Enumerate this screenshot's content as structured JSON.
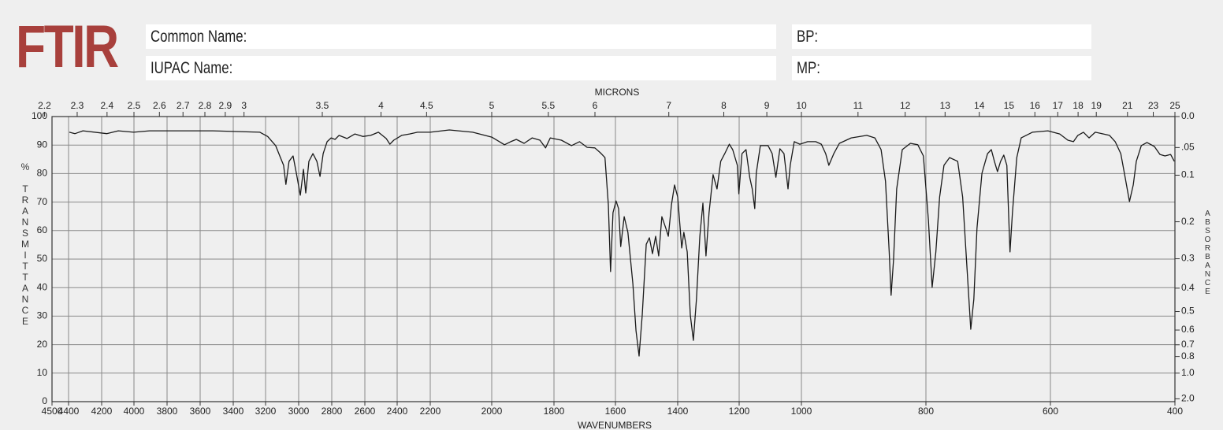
{
  "header": {
    "title": "FTIR",
    "common_name_label": "Common Name:",
    "iupac_name_label": "IUPAC Name:",
    "bp_label": "BP:",
    "mp_label": "MP:"
  },
  "chart_data": {
    "type": "line",
    "x_label": "WAVENUMBERS",
    "x2_label": "MICRONS",
    "y_label": "% TRANSMITTANCE",
    "y2_label": "ABSORBANCE",
    "color": "#1a1a1a",
    "grid": true,
    "xlim": [
      4500,
      400
    ],
    "xticks": [
      4500,
      4400,
      4200,
      4000,
      3800,
      3600,
      3400,
      3200,
      3000,
      2800,
      2600,
      2400,
      2200,
      2000,
      1800,
      1600,
      1400,
      1200,
      1000,
      800,
      600,
      400
    ],
    "x2ticks": [
      2.2,
      2.3,
      2.4,
      2.5,
      2.6,
      2.7,
      2.8,
      2.9,
      3,
      3.5,
      4,
      4.5,
      5,
      5.5,
      6,
      7,
      8,
      9,
      10,
      11,
      12,
      13,
      14,
      15,
      16,
      17,
      18,
      19,
      21,
      23,
      25
    ],
    "ylim": [
      0,
      100
    ],
    "yticks": [
      0,
      10,
      20,
      30,
      40,
      50,
      60,
      70,
      80,
      90,
      100
    ],
    "y2ticks": [
      {
        "value": 0,
        "label": "0.0"
      },
      {
        "value": 0.05,
        "label": ".05"
      },
      0.1,
      0.2,
      0.3,
      0.4,
      0.5,
      0.6,
      0.7,
      0.8,
      {
        "value": 1,
        "label": "1.0"
      },
      {
        "value": 2,
        "label": "2.0"
      }
    ],
    "x": [
      4395,
      4361,
      4313,
      4169,
      4097,
      4002,
      3906,
      3714,
      3522,
      3235,
      3187,
      3139,
      3110,
      3091,
      3077,
      3058,
      3034,
      3014,
      2990,
      2971,
      2957,
      2938,
      2914,
      2890,
      2871,
      2852,
      2828,
      2804,
      2780,
      2756,
      2708,
      2660,
      2612,
      2564,
      2516,
      2468,
      2445,
      2421,
      2373,
      2325,
      2277,
      2200,
      2138,
      2062,
      2000,
      1959,
      1939,
      1921,
      1896,
      1870,
      1845,
      1827,
      1812,
      1776,
      1743,
      1717,
      1692,
      1667,
      1649,
      1634,
      1623,
      1616,
      1608,
      1598,
      1590,
      1583,
      1572,
      1560,
      1544,
      1534,
      1524,
      1514,
      1501,
      1491,
      1481,
      1471,
      1461,
      1451,
      1438,
      1430,
      1420,
      1410,
      1400,
      1387,
      1380,
      1369,
      1359,
      1349,
      1339,
      1328,
      1318,
      1308,
      1298,
      1285,
      1272,
      1260,
      1247,
      1232,
      1221,
      1206,
      1201,
      1191,
      1178,
      1166,
      1158,
      1150,
      1145,
      1132,
      1107,
      1094,
      1082,
      1069,
      1056,
      1043,
      1036,
      1023,
      1005,
      990,
      977,
      968,
      961,
      956,
      948,
      939,
      920,
      895,
      882,
      872,
      865,
      859,
      856,
      852,
      847,
      838,
      825,
      813,
      804,
      796,
      790,
      784,
      778,
      771,
      762,
      749,
      741,
      734,
      728,
      723,
      718,
      710,
      701,
      695,
      690,
      685,
      680,
      675,
      670,
      665,
      661,
      654,
      647,
      629,
      604,
      585,
      572,
      563,
      556,
      547,
      538,
      528,
      515,
      505,
      496,
      487,
      480,
      473,
      467,
      462,
      454,
      445,
      433,
      424,
      416,
      407,
      401
    ],
    "values": [
      94.5,
      94,
      95,
      94,
      95,
      94.5,
      95,
      95,
      95,
      94.5,
      93,
      89.8,
      85.6,
      82.9,
      76.2,
      84.3,
      86.2,
      80.1,
      72.4,
      81.5,
      73.2,
      84.3,
      87,
      84.3,
      79,
      87,
      91.2,
      92.5,
      92,
      93.4,
      92.3,
      93.9,
      93,
      93.4,
      94.5,
      92.3,
      90.3,
      91.7,
      93.4,
      93.9,
      94.5,
      94.5,
      95.3,
      94.5,
      92.8,
      90.1,
      91.2,
      92,
      90.6,
      92.5,
      91.7,
      89,
      92.5,
      91.7,
      89.8,
      91.2,
      89.2,
      89,
      87.3,
      85.6,
      69.1,
      45.6,
      66.3,
      70.4,
      67.7,
      54.4,
      64.9,
      59.4,
      41.4,
      24.9,
      16,
      30.4,
      55.2,
      57.5,
      51.9,
      58,
      51.1,
      64.9,
      60.8,
      58,
      69.1,
      76,
      71.8,
      53.9,
      59.4,
      52.5,
      30.4,
      21.5,
      35.9,
      58,
      69.6,
      51.1,
      66.3,
      79.6,
      74.6,
      84.3,
      87,
      90.3,
      88.4,
      82.9,
      72.9,
      87,
      88.4,
      78.7,
      74.6,
      67.7,
      80.1,
      89.8,
      89.8,
      87,
      78.7,
      88.7,
      87,
      74.6,
      82.9,
      91.2,
      90.3,
      91.2,
      91.2,
      90.3,
      87,
      82.9,
      87,
      90.6,
      92.5,
      93.4,
      92.5,
      88.4,
      77.3,
      52.5,
      37.3,
      49.7,
      74.6,
      88.4,
      90.6,
      90.1,
      86.2,
      63.5,
      40.1,
      52.5,
      71.8,
      82.9,
      85.6,
      84.3,
      71.8,
      47,
      25.4,
      35.9,
      60.8,
      80.1,
      87,
      88.4,
      84.3,
      80.7,
      84.3,
      86.5,
      82.9,
      52.5,
      66.3,
      85.6,
      92.5,
      94.5,
      95,
      93.9,
      91.7,
      91.2,
      93.4,
      94.5,
      92.5,
      94.5,
      93.9,
      93.4,
      91.2,
      87,
      78.7,
      70.2,
      76,
      84.3,
      89.8,
      90.9,
      89.5,
      86.7,
      86.2,
      86.7,
      84.3
    ]
  }
}
